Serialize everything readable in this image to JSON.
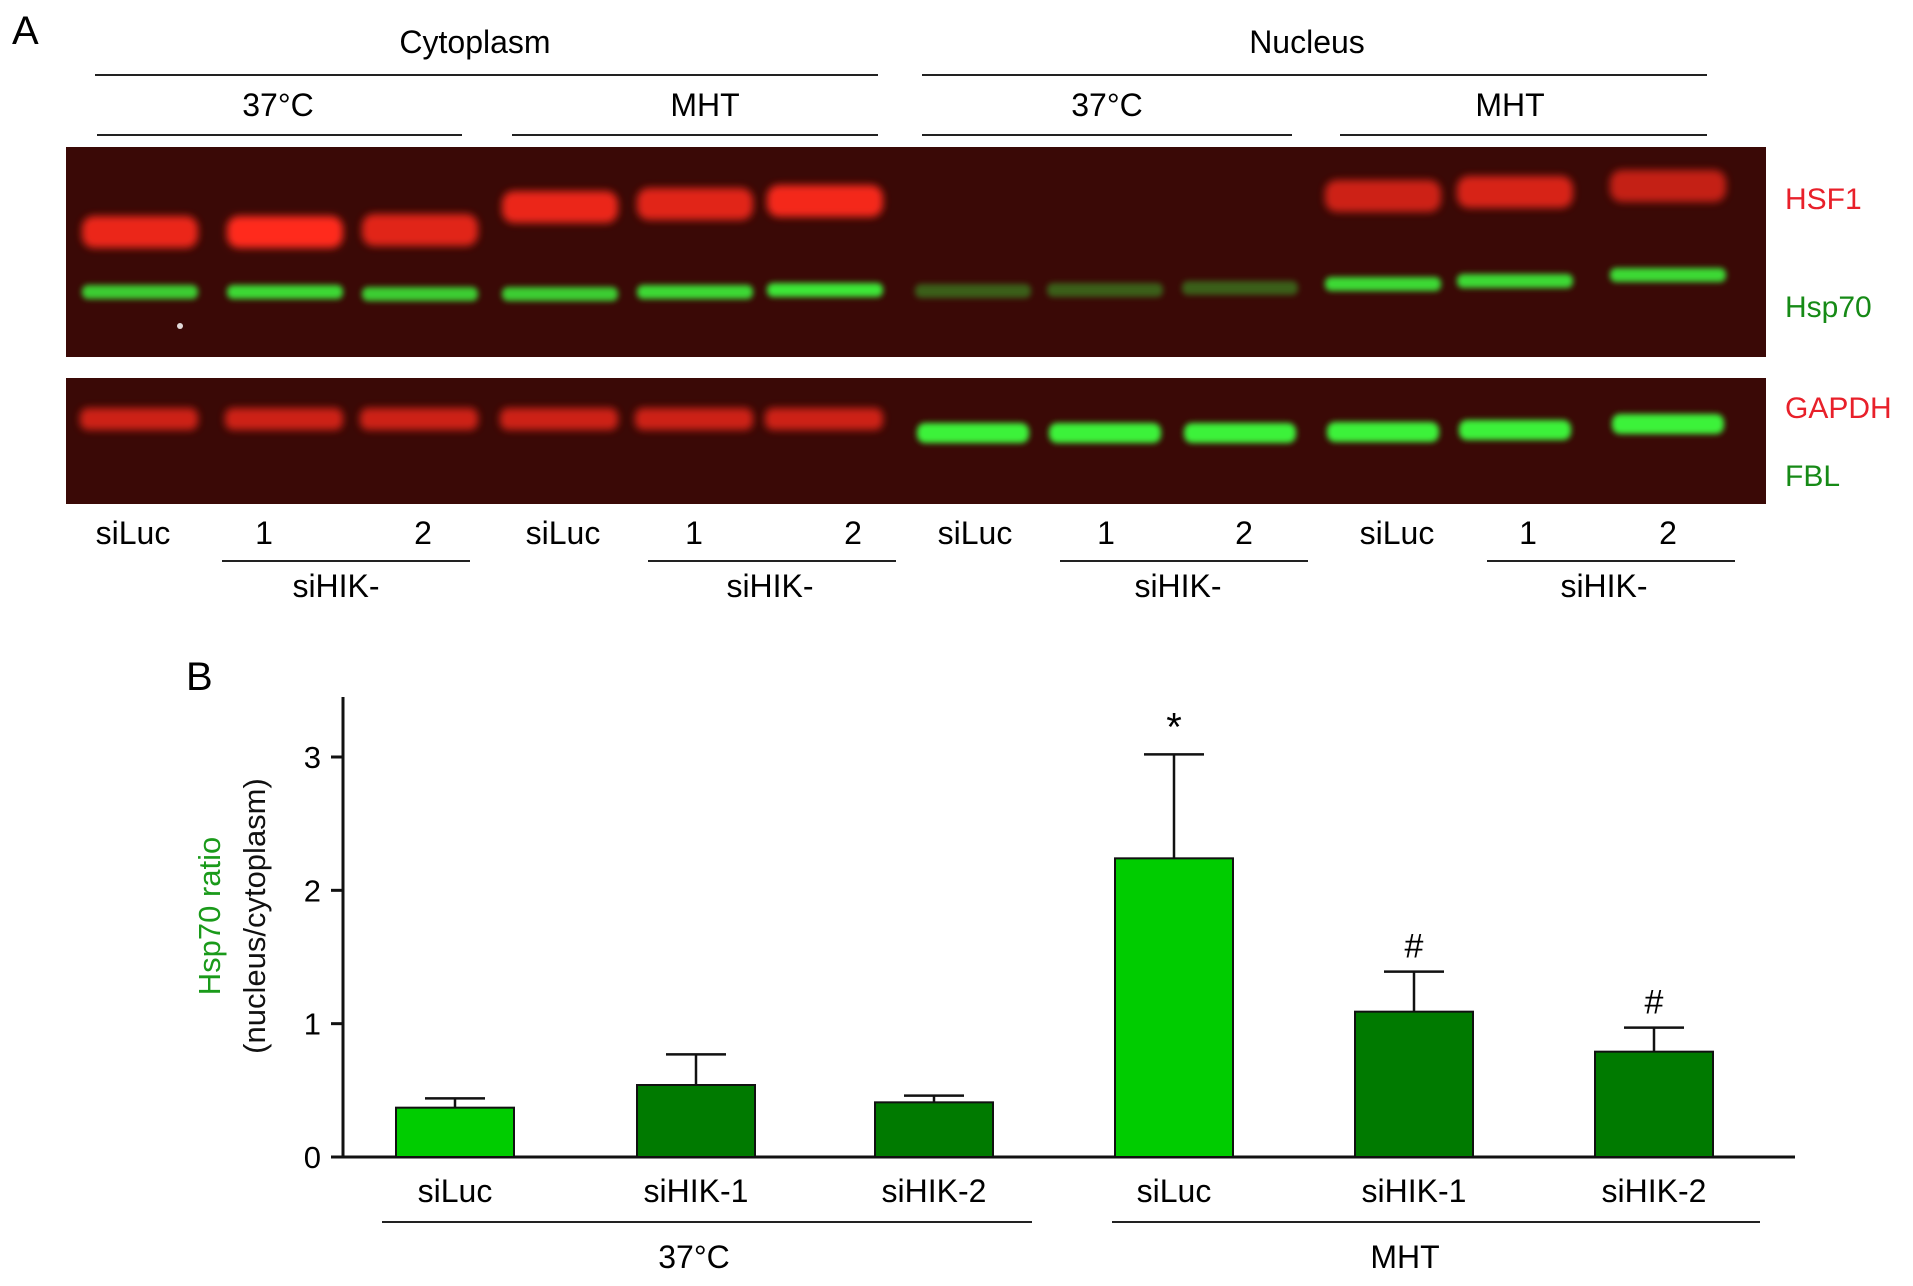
{
  "panel_a": {
    "panel_letter": "A",
    "compartments": [
      "Cytoplasm",
      "Nucleus"
    ],
    "conditions": [
      "37°C",
      "MHT",
      "37°C",
      "MHT"
    ],
    "lanes": [
      "siLuc",
      "1",
      "2",
      "siLuc",
      "1",
      "2",
      "siLuc",
      "1",
      "2",
      "siLuc",
      "1",
      "2"
    ],
    "group_label": "siHIK-",
    "top_blot_labels": [
      {
        "text": "HSF1",
        "color": "#e8202a"
      },
      {
        "text": "Hsp70",
        "color": "#168a16"
      }
    ],
    "bottom_blot_labels": [
      {
        "text": "GAPDH",
        "color": "#e8202a"
      },
      {
        "text": "FBL",
        "color": "#168a16"
      }
    ],
    "blot_colors": {
      "background": "#3a0906",
      "red_band": "#ff2a1a",
      "green_band": "#3cff3c"
    }
  },
  "panel_b": {
    "panel_letter": "B",
    "ylabel_line1": "Hsp70 ratio",
    "ylabel_line1_color": "#1a9a1a",
    "ylabel_line2": "(nucleus/cytoplasm)",
    "group_labels": [
      "37°C",
      "MHT"
    ]
  },
  "chart_data": {
    "type": "bar",
    "categories": [
      "siLuc",
      "siHIK-1",
      "siHIK-2",
      "siLuc",
      "siHIK-1",
      "siHIK-2"
    ],
    "values": [
      0.37,
      0.54,
      0.41,
      2.24,
      1.09,
      0.79
    ],
    "errors": [
      0.07,
      0.23,
      0.05,
      0.78,
      0.3,
      0.18
    ],
    "annotations": [
      "",
      "",
      "",
      "*",
      "#",
      "#"
    ],
    "bar_colors": [
      "#00cc00",
      "#007a00",
      "#007a00",
      "#00cc00",
      "#007a00",
      "#007a00"
    ],
    "yticks": [
      0,
      1,
      2,
      3
    ],
    "ylim": [
      0,
      3.45
    ],
    "xlabel": "",
    "ylabel": "Hsp70 ratio (nucleus/cytoplasm)"
  }
}
